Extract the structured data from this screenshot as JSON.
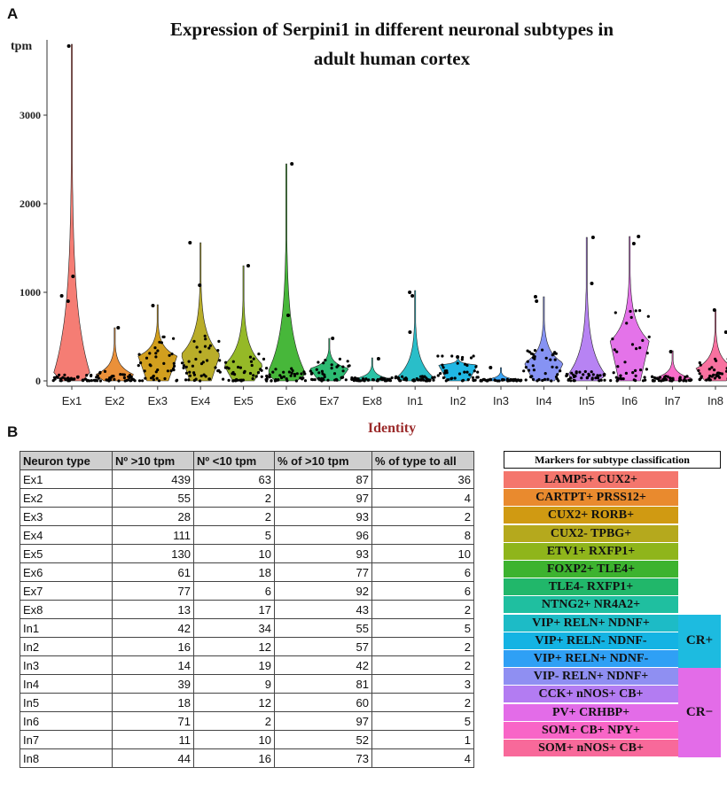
{
  "panel_a_label": "A",
  "panel_b_label": "B",
  "chart_data": {
    "type": "violin",
    "title_line1": "Expression of Serpini1 in different neuronal subtypes in",
    "title_line2": "adult human cortex",
    "ylabel": "tpm",
    "xlabel": "Identity",
    "ylim": [
      0,
      3850
    ],
    "yticks": [
      0,
      1000,
      2000,
      3000
    ],
    "grid": false,
    "categories": [
      "Ex1",
      "Ex2",
      "Ex3",
      "Ex4",
      "Ex5",
      "Ex6",
      "Ex7",
      "Ex8",
      "In1",
      "In2",
      "In3",
      "In4",
      "In5",
      "In6",
      "In7",
      "In8"
    ],
    "colors": [
      "#f4766d",
      "#e98a2e",
      "#d09a12",
      "#b5a91d",
      "#8fb51b",
      "#3db32f",
      "#21b76a",
      "#1fbfa0",
      "#1dbbc6",
      "#14b3e3",
      "#2fa0f5",
      "#7f8df2",
      "#b37cf2",
      "#e36ce8",
      "#f865c7",
      "#f8699a"
    ],
    "max_values": [
      3800,
      600,
      860,
      1560,
      1300,
      2450,
      480,
      260,
      1020,
      280,
      150,
      950,
      1620,
      1630,
      340,
      800
    ],
    "peak_values": [
      40,
      70,
      280,
      300,
      180,
      80,
      140,
      20,
      30,
      180,
      10,
      200,
      60,
      450,
      30,
      140
    ],
    "outliers": [
      [
        1180,
        960,
        900,
        3780
      ],
      [
        600
      ],
      [
        850
      ],
      [
        1080,
        1560
      ],
      [
        1300
      ],
      [
        2450,
        740
      ],
      [
        480
      ],
      [
        250
      ],
      [
        1000,
        960,
        550
      ],
      [
        270
      ],
      [
        150
      ],
      [
        950,
        900
      ],
      [
        1620,
        1100
      ],
      [
        1630,
        1550
      ],
      [
        330
      ],
      [
        800,
        550
      ]
    ]
  },
  "table": {
    "headers": [
      "Neuron type",
      "Nº >10 tpm",
      "Nº <10 tpm",
      "% of >10 tpm",
      "% of type to all"
    ],
    "rows": [
      [
        "Ex1",
        "439",
        "63",
        "87",
        "36"
      ],
      [
        "Ex2",
        "55",
        "2",
        "97",
        "4"
      ],
      [
        "Ex3",
        "28",
        "2",
        "93",
        "2"
      ],
      [
        "Ex4",
        "111",
        "5",
        "96",
        "8"
      ],
      [
        "Ex5",
        "130",
        "10",
        "93",
        "10"
      ],
      [
        "Ex6",
        "61",
        "18",
        "77",
        "6"
      ],
      [
        "Ex7",
        "77",
        "6",
        "92",
        "6"
      ],
      [
        "Ex8",
        "13",
        "17",
        "43",
        "2"
      ],
      [
        "In1",
        "42",
        "34",
        "55",
        "5"
      ],
      [
        "In2",
        "16",
        "12",
        "57",
        "2"
      ],
      [
        "In3",
        "14",
        "19",
        "42",
        "2"
      ],
      [
        "In4",
        "39",
        "9",
        "81",
        "3"
      ],
      [
        "In5",
        "18",
        "12",
        "60",
        "2"
      ],
      [
        "In6",
        "71",
        "2",
        "97",
        "5"
      ],
      [
        "In7",
        "11",
        "10",
        "52",
        "1"
      ],
      [
        "In8",
        "44",
        "16",
        "73",
        "4"
      ]
    ]
  },
  "markers": {
    "header": "Markers for subtype classification",
    "items": [
      {
        "label": "LAMP5+ CUX2+",
        "color": "#f4766d"
      },
      {
        "label": "CARTPT+ PRSS12+",
        "color": "#e98a2e"
      },
      {
        "label": "CUX2+ RORB+",
        "color": "#d09a12"
      },
      {
        "label": "CUX2- TPBG+",
        "color": "#b5a91d"
      },
      {
        "label": "ETV1+ RXFP1+",
        "color": "#8fb51b"
      },
      {
        "label": "FOXP2+ TLE4+",
        "color": "#3db32f"
      },
      {
        "label": "TLE4- RXFP1+",
        "color": "#21b76a"
      },
      {
        "label": "NTNG2+ NR4A2+",
        "color": "#1fbfa0"
      },
      {
        "label": "VIP+ RELN+ NDNF+",
        "color": "#1dbbc6"
      },
      {
        "label": "VIP+ RELN-  NDNF-",
        "color": "#14b3e3"
      },
      {
        "label": "VIP+ RELN+ NDNF-",
        "color": "#2fa0f5"
      },
      {
        "label": "VIP-  RELN+ NDNF+",
        "color": "#8f8ff2"
      },
      {
        "label": "CCK+ nNOS+ CB+",
        "color": "#b37cf2"
      },
      {
        "label": "PV+ CRHBP+",
        "color": "#e36ce8"
      },
      {
        "label": "SOM+ CB+ NPY+",
        "color": "#f865c7"
      },
      {
        "label": "SOM+ nNOS+ CB+",
        "color": "#f8699a"
      }
    ],
    "group_cr_plus": "CR+",
    "group_cr_minus": "CR−",
    "group_cr_plus_color": "#1dbbe0",
    "group_cr_minus_color": "#e36ce8"
  }
}
